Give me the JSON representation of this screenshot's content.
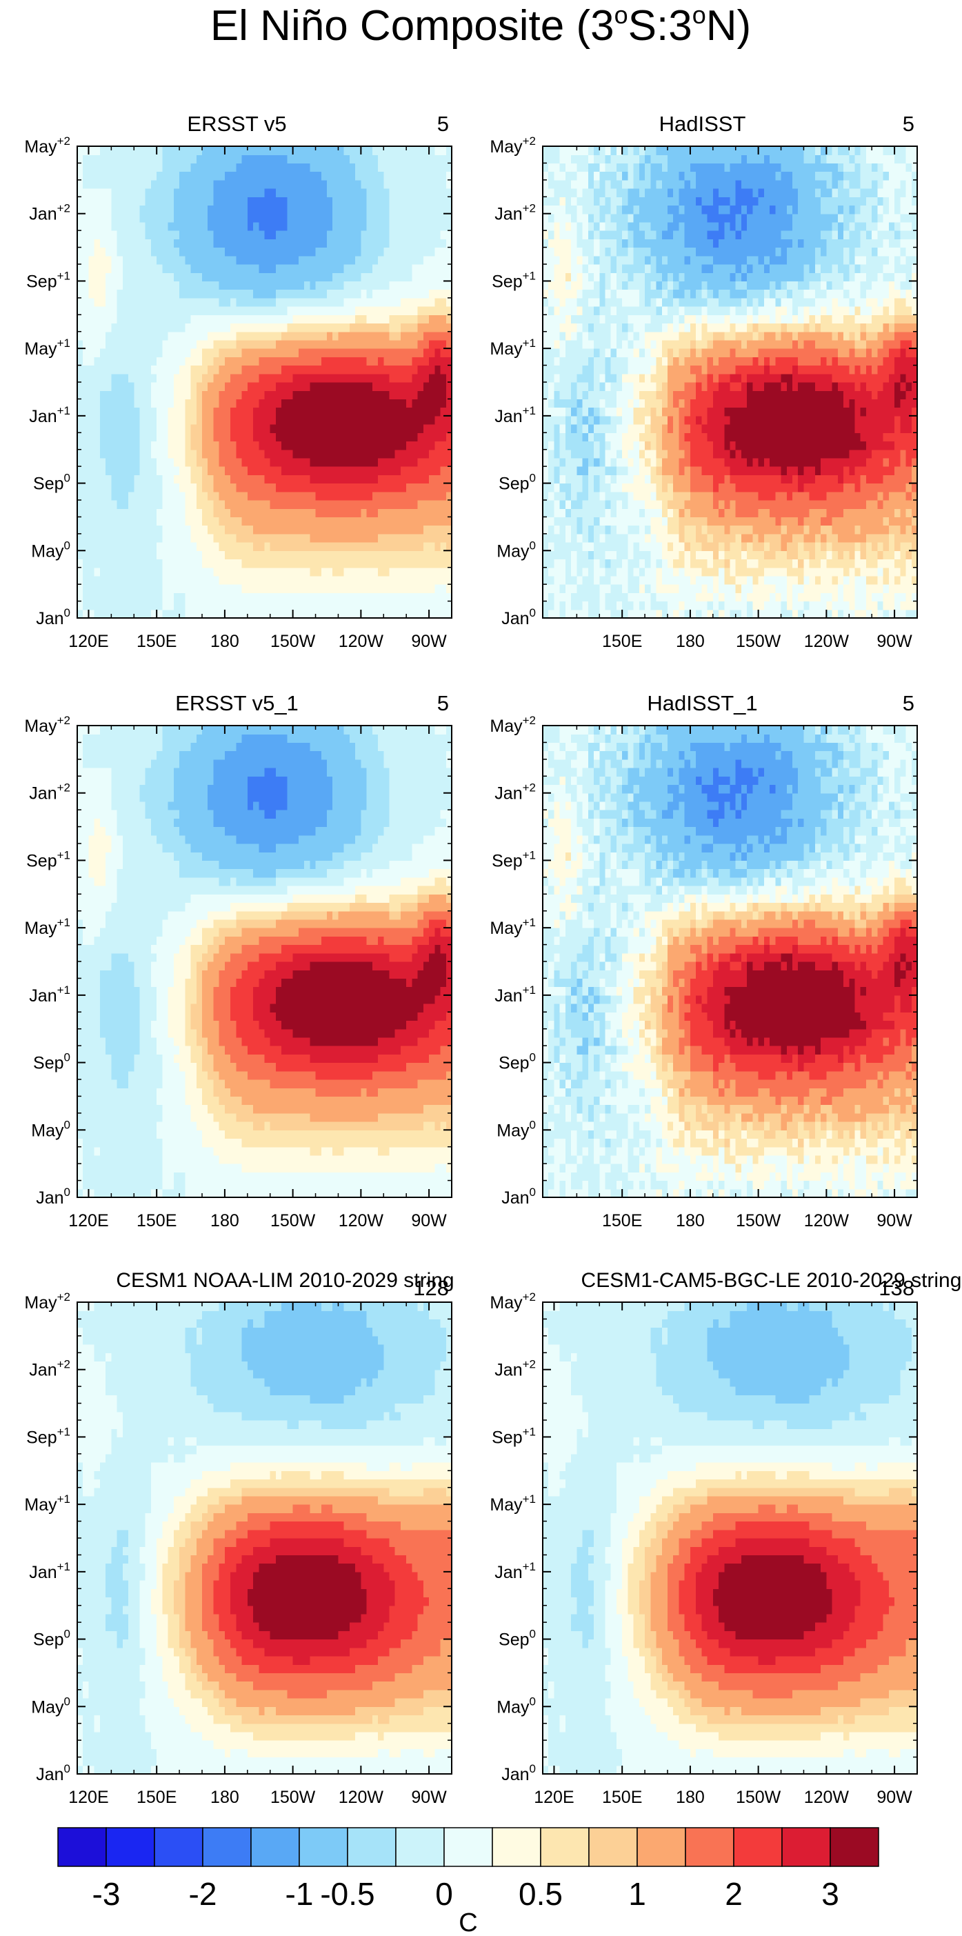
{
  "title": "El Niño Composite (3°S:3°N)",
  "title_parts": {
    "main": "El Niño Composite (3",
    "sup1": "o",
    "mid": "S:3",
    "sup2": "o",
    "end": "N)"
  },
  "chart_data": {
    "type": "heatmap",
    "description_units": "SST anomaly (C), longitude vs. time Hovmoller, 3S-3N average",
    "y_ticks": [
      {
        "base": "Jan",
        "sup": "0"
      },
      {
        "base": "May",
        "sup": "0"
      },
      {
        "base": "Sep",
        "sup": "0"
      },
      {
        "base": "Jan",
        "sup": "+1"
      },
      {
        "base": "May",
        "sup": "+1"
      },
      {
        "base": "Sep",
        "sup": "+1"
      },
      {
        "base": "Jan",
        "sup": "+2"
      },
      {
        "base": "May",
        "sup": "+2"
      }
    ],
    "x_range_degE": [
      115,
      280
    ],
    "x_ticks_full": [
      {
        "label": "120E",
        "lon": 120
      },
      {
        "label": "150E",
        "lon": 150
      },
      {
        "label": "180",
        "lon": 180
      },
      {
        "label": "150W",
        "lon": 210
      },
      {
        "label": "120W",
        "lon": 240
      },
      {
        "label": "90W",
        "lon": 270
      }
    ],
    "x_ticks_no120": [
      {
        "label": "150E",
        "lon": 150
      },
      {
        "label": "180",
        "lon": 180
      },
      {
        "label": "150W",
        "lon": 210
      },
      {
        "label": "120W",
        "lon": 240
      },
      {
        "label": "90W",
        "lon": 270
      }
    ],
    "panels": [
      {
        "id": "ersst",
        "title": "ERSST v5",
        "count": "5",
        "x_tick_set": "full",
        "style": "obs_smooth",
        "peak_lon": 232,
        "peak_month": 11.5,
        "peak_value": 2.6
      },
      {
        "id": "hadisst",
        "title": "HadISST",
        "count": "5",
        "x_tick_set": "no120",
        "style": "obs_noisy",
        "peak_lon": 225,
        "peak_month": 11.5,
        "peak_value": 2.6
      },
      {
        "id": "ersst1",
        "title": "ERSST v5_1",
        "count": "5",
        "x_tick_set": "full",
        "style": "obs_smooth",
        "peak_lon": 232,
        "peak_month": 11.5,
        "peak_value": 2.6
      },
      {
        "id": "hadisst1",
        "title": "HadISST_1",
        "count": "5",
        "x_tick_set": "no120",
        "style": "obs_noisy",
        "peak_lon": 225,
        "peak_month": 11.5,
        "peak_value": 2.6
      },
      {
        "id": "cesm_lim",
        "title": "CESM1 NOAA-LIM 2010-2029 string",
        "count": "128",
        "x_tick_set": "full",
        "style": "model",
        "peak_lon": 215,
        "peak_month": 10.5,
        "peak_value": 2.4
      },
      {
        "id": "cesm_le",
        "title": "CESM1-CAM5-BGC-LE 2010-2029 string",
        "count": "138",
        "x_tick_set": "full",
        "style": "model",
        "peak_lon": 215,
        "peak_month": 10.5,
        "peak_value": 2.4
      }
    ],
    "colorbar": {
      "units": "C",
      "levels": [
        -3,
        -2.5,
        -2,
        -1.5,
        -1,
        -0.5,
        -0.25,
        0,
        0.25,
        0.5,
        0.75,
        1,
        1.5,
        2,
        2.5,
        3
      ],
      "colors": [
        "#1c0fd9",
        "#1a26f2",
        "#2b4ff5",
        "#3d7cf5",
        "#59a8f5",
        "#7dcaf7",
        "#a6e3f9",
        "#ccf3fa",
        "#eafdfc",
        "#fffbe2",
        "#fde6b0",
        "#fcd096",
        "#fba870",
        "#f97354",
        "#f33b3b",
        "#dc1d33",
        "#9b0a23"
      ],
      "labels": [
        {
          "text": "-3",
          "level": -3
        },
        {
          "text": "-2",
          "level": -2
        },
        {
          "text": "-1",
          "level": -1
        },
        {
          "text": "-0.5",
          "level": -0.5
        },
        {
          "text": "0",
          "level": 0
        },
        {
          "text": "0.5",
          "level": 0.5
        },
        {
          "text": "1",
          "level": 1
        },
        {
          "text": "2",
          "level": 2
        },
        {
          "text": "3",
          "level": 3
        }
      ]
    }
  }
}
